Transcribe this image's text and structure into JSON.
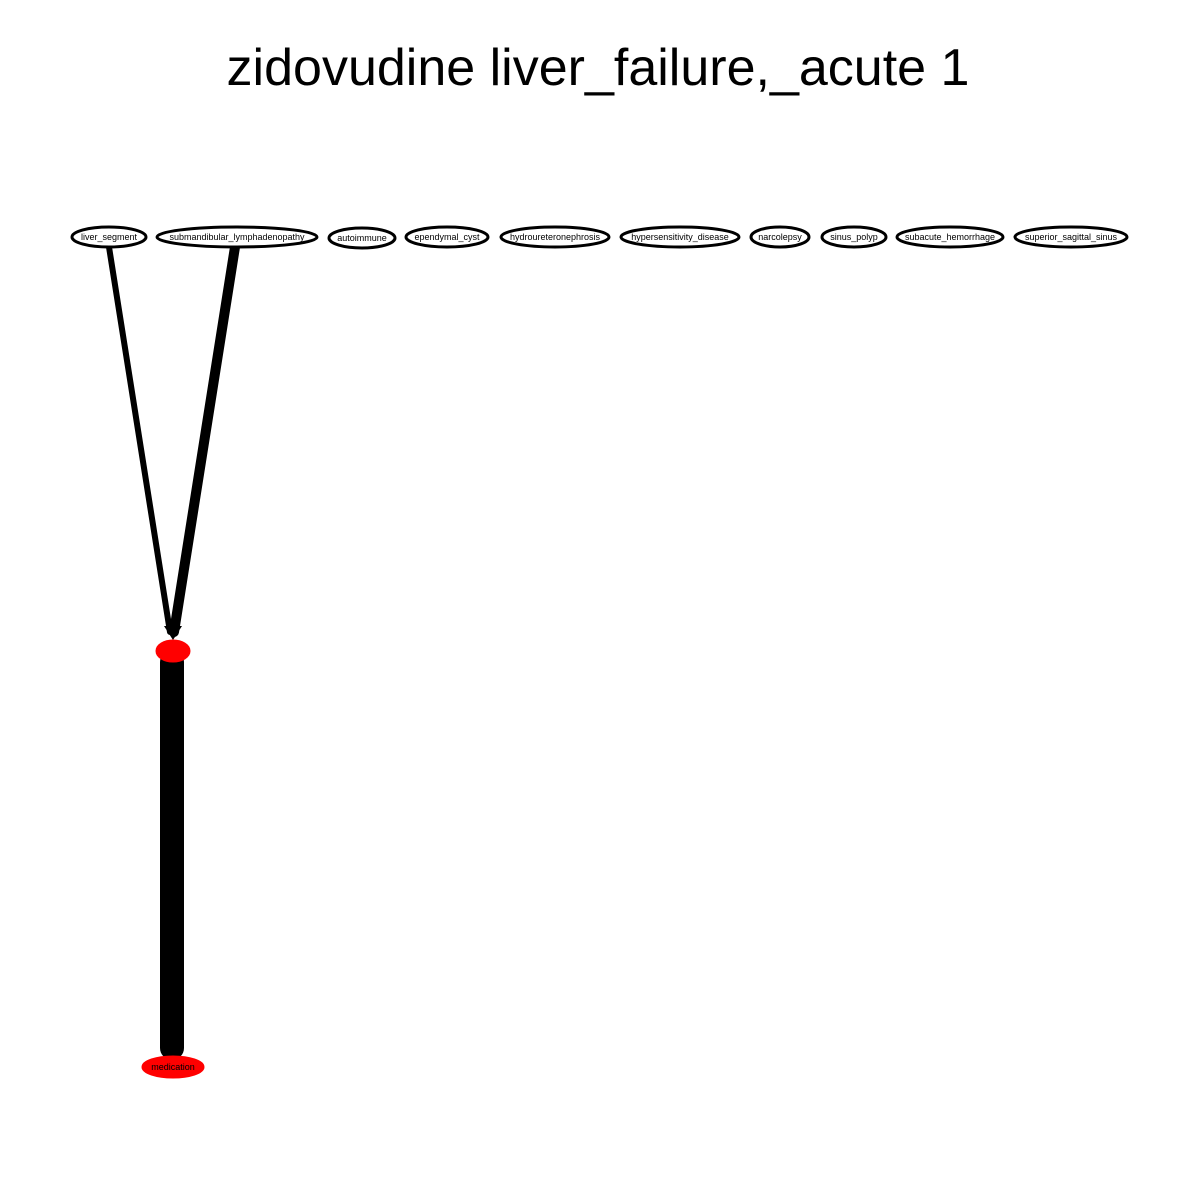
{
  "title": "zidovudine liver_failure,_acute 1",
  "colors": {
    "highlight": "#ff0000",
    "edge": "#000000",
    "background": "#ffffff"
  },
  "nodes": {
    "liver_segment": "liver_segment",
    "submandibular_lymphadenopathy": "submandibular_lymphadenopathy",
    "autoimmune": "autoimmune",
    "ependymal_cyst": "ependymal_cyst",
    "hydroureteronephrosis": "hydroureteronephrosis",
    "hypersensitivity_disease": "hypersensitivity_disease",
    "narcolepsy": "narcolepsy",
    "sinus_polyp": "sinus_polyp",
    "subacute_hemorrhage": "subacute_hemorrhage",
    "superior_sagittal_sinus": "superior_sagittal_sinus",
    "center": "",
    "medication": "medication"
  },
  "edges": [
    {
      "from": "liver_segment",
      "to": "center"
    },
    {
      "from": "submandibular_lymphadenopathy",
      "to": "center"
    },
    {
      "from": "center",
      "to": "medication"
    }
  ]
}
